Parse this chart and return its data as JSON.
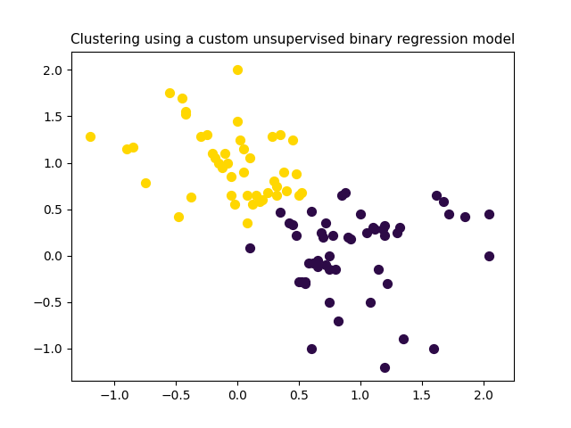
{
  "title": "Clustering using a custom unsupervised binary regression model",
  "yellow_points": [
    [
      -1.2,
      1.28
    ],
    [
      -0.85,
      1.17
    ],
    [
      -0.9,
      1.15
    ],
    [
      -0.75,
      0.78
    ],
    [
      -0.55,
      1.75
    ],
    [
      -0.45,
      1.7
    ],
    [
      -0.42,
      1.55
    ],
    [
      -0.42,
      1.52
    ],
    [
      -0.48,
      0.42
    ],
    [
      -0.38,
      0.63
    ],
    [
      -0.3,
      1.28
    ],
    [
      -0.25,
      1.3
    ],
    [
      -0.2,
      1.1
    ],
    [
      -0.18,
      1.05
    ],
    [
      -0.15,
      1.0
    ],
    [
      -0.12,
      0.95
    ],
    [
      -0.1,
      1.1
    ],
    [
      -0.08,
      1.0
    ],
    [
      -0.05,
      0.85
    ],
    [
      -0.05,
      0.65
    ],
    [
      -0.02,
      0.55
    ],
    [
      0.0,
      2.0
    ],
    [
      0.0,
      1.45
    ],
    [
      0.02,
      1.25
    ],
    [
      0.05,
      1.15
    ],
    [
      0.05,
      0.9
    ],
    [
      0.08,
      0.65
    ],
    [
      0.08,
      0.35
    ],
    [
      0.1,
      1.05
    ],
    [
      0.12,
      0.55
    ],
    [
      0.15,
      0.65
    ],
    [
      0.18,
      0.58
    ],
    [
      0.2,
      0.6
    ],
    [
      0.25,
      0.68
    ],
    [
      0.28,
      1.28
    ],
    [
      0.3,
      0.8
    ],
    [
      0.32,
      0.75
    ],
    [
      0.32,
      0.65
    ],
    [
      0.35,
      1.3
    ],
    [
      0.38,
      0.9
    ],
    [
      0.4,
      0.7
    ],
    [
      0.45,
      1.25
    ],
    [
      0.48,
      0.88
    ],
    [
      0.5,
      0.65
    ],
    [
      0.52,
      0.68
    ]
  ],
  "purple_points": [
    [
      0.1,
      0.08
    ],
    [
      0.35,
      0.47
    ],
    [
      0.42,
      0.35
    ],
    [
      0.45,
      0.33
    ],
    [
      0.48,
      0.22
    ],
    [
      0.5,
      -0.28
    ],
    [
      0.52,
      -0.28
    ],
    [
      0.55,
      -0.3
    ],
    [
      0.55,
      -0.28
    ],
    [
      0.58,
      -0.08
    ],
    [
      0.6,
      0.48
    ],
    [
      0.62,
      -0.08
    ],
    [
      0.65,
      -0.12
    ],
    [
      0.65,
      -0.05
    ],
    [
      0.68,
      0.25
    ],
    [
      0.7,
      0.2
    ],
    [
      0.72,
      0.35
    ],
    [
      0.72,
      -0.1
    ],
    [
      0.75,
      0.0
    ],
    [
      0.75,
      -0.15
    ],
    [
      0.75,
      -0.5
    ],
    [
      0.78,
      0.22
    ],
    [
      0.8,
      -0.15
    ],
    [
      0.82,
      -0.7
    ],
    [
      0.85,
      0.65
    ],
    [
      0.88,
      0.68
    ],
    [
      0.9,
      0.2
    ],
    [
      0.92,
      0.18
    ],
    [
      1.0,
      0.45
    ],
    [
      1.05,
      0.25
    ],
    [
      1.08,
      -0.5
    ],
    [
      1.1,
      0.3
    ],
    [
      1.12,
      0.28
    ],
    [
      1.15,
      -0.15
    ],
    [
      1.18,
      0.28
    ],
    [
      1.2,
      0.32
    ],
    [
      1.2,
      0.22
    ],
    [
      1.22,
      -0.3
    ],
    [
      1.3,
      0.25
    ],
    [
      1.32,
      0.3
    ],
    [
      1.35,
      -0.9
    ],
    [
      1.6,
      -1.0
    ],
    [
      0.6,
      -1.0
    ],
    [
      1.62,
      0.65
    ],
    [
      1.68,
      0.58
    ],
    [
      1.72,
      0.45
    ],
    [
      1.85,
      0.42
    ],
    [
      2.05,
      0.0
    ],
    [
      2.05,
      0.45
    ],
    [
      1.2,
      -1.2
    ]
  ],
  "yellow_color": "#FFD700",
  "purple_color": "#2D0A47",
  "marker_size": 50,
  "xlim": [
    -1.35,
    2.25
  ],
  "ylim": [
    -1.35,
    2.2
  ],
  "xticks": [
    -1.0,
    -0.5,
    0.0,
    0.5,
    1.0,
    1.5,
    2.0
  ],
  "yticks": [
    -1.0,
    -0.5,
    0.0,
    0.5,
    1.0,
    1.5,
    2.0
  ],
  "title_fontsize": 11
}
